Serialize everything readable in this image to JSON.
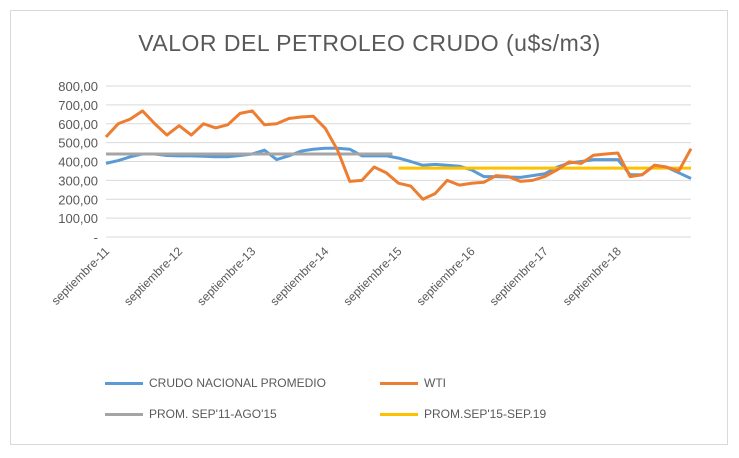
{
  "chart_data": {
    "type": "line",
    "title": "VALOR DEL PETROLEO CRUDO (u$s/m3)",
    "xlabel": "",
    "ylabel": "",
    "ylim": [
      0,
      800
    ],
    "y_ticks": [
      "-",
      "100,00",
      "200,00",
      "300,00",
      "400,00",
      "500,00",
      "600,00",
      "700,00",
      "800,00"
    ],
    "x_note": "bimonthly points from Sep 2011 (month index 0) to Sep 2019 (month index 96)",
    "x_months": [
      0,
      2,
      4,
      6,
      8,
      10,
      12,
      14,
      16,
      18,
      20,
      22,
      24,
      26,
      28,
      30,
      32,
      34,
      36,
      38,
      40,
      42,
      44,
      46,
      48,
      50,
      52,
      54,
      56,
      58,
      60,
      62,
      64,
      66,
      68,
      70,
      72,
      74,
      76,
      78,
      80,
      82,
      84,
      86,
      88,
      90,
      92,
      94,
      96
    ],
    "x_tick_labels": [
      {
        "label": "septiembre-11",
        "month": 0
      },
      {
        "label": "septiembre-12",
        "month": 12
      },
      {
        "label": "septiembre-13",
        "month": 24
      },
      {
        "label": "septiembre-14",
        "month": 36
      },
      {
        "label": "septiembre-15",
        "month": 48
      },
      {
        "label": "septiembre-16",
        "month": 60
      },
      {
        "label": "septiembre-17",
        "month": 72
      },
      {
        "label": "septiembre-18",
        "month": 84
      }
    ],
    "grid": true,
    "legend_position": "bottom",
    "series": [
      {
        "name": "CRUDO NACIONAL PROMEDIO",
        "color": "#5b9bd5",
        "values": [
          390,
          405,
          425,
          440,
          440,
          432,
          430,
          430,
          428,
          425,
          425,
          432,
          440,
          460,
          410,
          430,
          455,
          465,
          470,
          470,
          465,
          430,
          430,
          430,
          418,
          400,
          380,
          385,
          380,
          375,
          355,
          320,
          320,
          318,
          316,
          325,
          335,
          370,
          392,
          400,
          410,
          410,
          410,
          330,
          330,
          380,
          370,
          340,
          310
        ]
      },
      {
        "name": "WTI",
        "color": "#ed7d31",
        "values": [
          530,
          600,
          625,
          668,
          600,
          540,
          590,
          540,
          600,
          578,
          595,
          655,
          668,
          595,
          600,
          628,
          636,
          640,
          575,
          460,
          295,
          300,
          371,
          340,
          285,
          270,
          200,
          230,
          300,
          275,
          285,
          290,
          325,
          320,
          295,
          300,
          320,
          355,
          398,
          390,
          433,
          440,
          445,
          320,
          330,
          380,
          370,
          350,
          468
        ]
      },
      {
        "name": "PROM. SEP'11-AGO'15",
        "color": "#a5a5a5",
        "constant": 440,
        "from_month": 0,
        "to_month": 47
      },
      {
        "name": "PROM.SEP'15-SEP.19",
        "color": "#ffc000",
        "constant": 365,
        "from_month": 48,
        "to_month": 96
      }
    ]
  }
}
